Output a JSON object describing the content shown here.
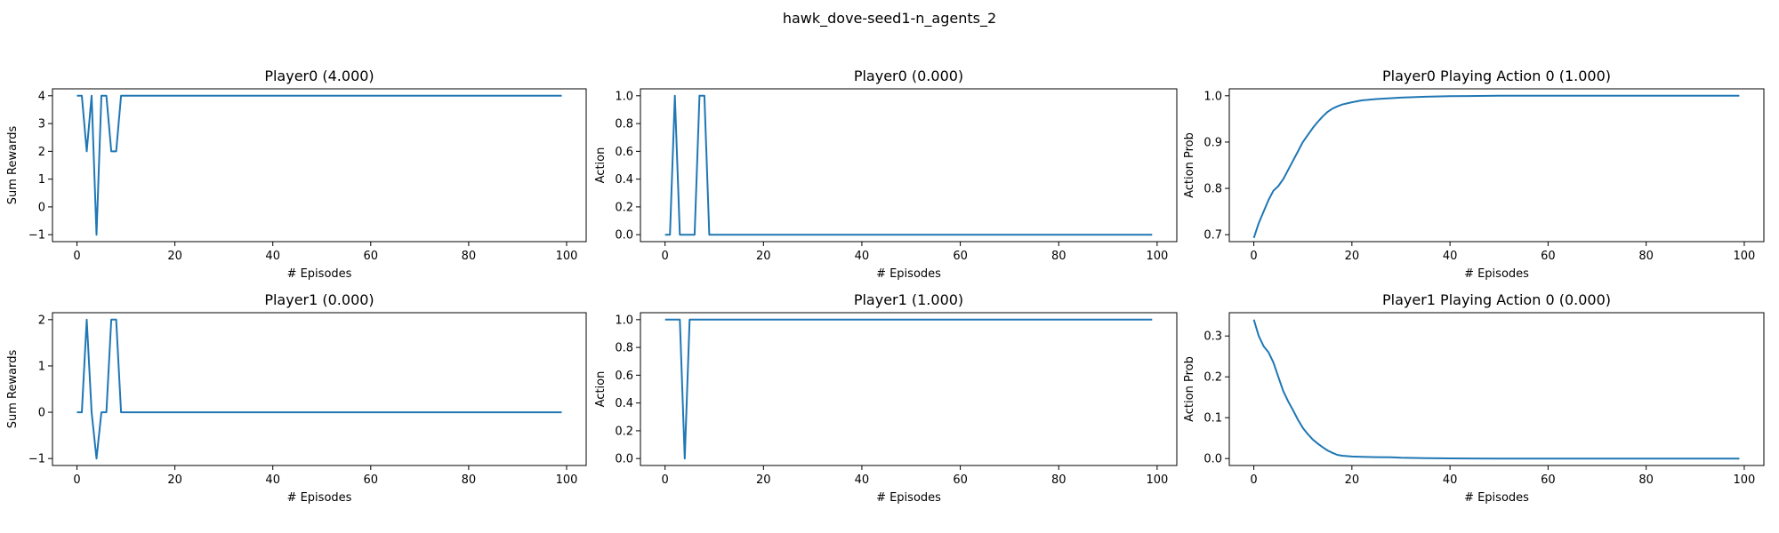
{
  "figure": {
    "suptitle": "hawk_dove-seed1-n_agents_2",
    "line_color": "#1f77b4"
  },
  "chart_data": [
    {
      "type": "line",
      "title": "Player0 (4.000)",
      "xlabel": "# Episodes",
      "ylabel": "Sum Rewards",
      "xlim": [
        -5,
        104
      ],
      "ylim": [
        -1.25,
        4.25
      ],
      "xticks": [
        0,
        20,
        40,
        60,
        80,
        100
      ],
      "yticks": [
        -1,
        0,
        1,
        2,
        3,
        4
      ],
      "grid": false,
      "series": [
        {
          "x": [
            0,
            1,
            2,
            3,
            4,
            5,
            6,
            7,
            8,
            9,
            99
          ],
          "y": [
            4,
            4,
            2,
            4,
            -1,
            4,
            4,
            2,
            2,
            4,
            4
          ]
        }
      ]
    },
    {
      "type": "line",
      "title": "Player0 (0.000)",
      "xlabel": "# Episodes",
      "ylabel": "Action",
      "xlim": [
        -5,
        104
      ],
      "ylim": [
        -0.05,
        1.05
      ],
      "xticks": [
        0,
        20,
        40,
        60,
        80,
        100
      ],
      "yticks": [
        0.0,
        0.2,
        0.4,
        0.6,
        0.8,
        1.0
      ],
      "ytick_labels": [
        "0.0",
        "0.2",
        "0.4",
        "0.6",
        "0.8",
        "1.0"
      ],
      "grid": false,
      "series": [
        {
          "x": [
            0,
            1,
            2,
            3,
            4,
            5,
            6,
            7,
            8,
            9,
            99
          ],
          "y": [
            0,
            0,
            1,
            0,
            0,
            0,
            0,
            1,
            1,
            0,
            0
          ]
        }
      ]
    },
    {
      "type": "line",
      "title": "Player0 Playing Action 0 (1.000)",
      "xlabel": "# Episodes",
      "ylabel": "Action Prob",
      "xlim": [
        -5,
        104
      ],
      "ylim": [
        0.685,
        1.015
      ],
      "xticks": [
        0,
        20,
        40,
        60,
        80,
        100
      ],
      "yticks": [
        0.7,
        0.8,
        0.9,
        1.0
      ],
      "ytick_labels": [
        "0.7",
        "0.8",
        "0.9",
        "1.0"
      ],
      "grid": false,
      "series": [
        {
          "x": [
            0,
            1,
            2,
            3,
            4,
            5,
            6,
            7,
            8,
            9,
            10,
            11,
            12,
            13,
            14,
            15,
            16,
            17,
            18,
            20,
            22,
            25,
            30,
            35,
            40,
            50,
            60,
            70,
            80,
            90,
            99
          ],
          "y": [
            0.693,
            0.725,
            0.75,
            0.775,
            0.795,
            0.805,
            0.82,
            0.84,
            0.86,
            0.88,
            0.9,
            0.915,
            0.93,
            0.943,
            0.955,
            0.965,
            0.972,
            0.977,
            0.981,
            0.986,
            0.99,
            0.993,
            0.996,
            0.998,
            0.999,
            1.0,
            1.0,
            1.0,
            1.0,
            1.0,
            1.0
          ]
        }
      ]
    },
    {
      "type": "line",
      "title": "Player1 (0.000)",
      "xlabel": "# Episodes",
      "ylabel": "Sum Rewards",
      "xlim": [
        -5,
        104
      ],
      "ylim": [
        -1.15,
        2.15
      ],
      "xticks": [
        0,
        20,
        40,
        60,
        80,
        100
      ],
      "yticks": [
        -1,
        0,
        1,
        2
      ],
      "grid": false,
      "series": [
        {
          "x": [
            0,
            1,
            2,
            3,
            4,
            5,
            6,
            7,
            8,
            9,
            99
          ],
          "y": [
            0,
            0,
            2,
            0,
            -1,
            0,
            0,
            2,
            2,
            0,
            0
          ]
        }
      ]
    },
    {
      "type": "line",
      "title": "Player1 (1.000)",
      "xlabel": "# Episodes",
      "ylabel": "Action",
      "xlim": [
        -5,
        104
      ],
      "ylim": [
        -0.05,
        1.05
      ],
      "xticks": [
        0,
        20,
        40,
        60,
        80,
        100
      ],
      "yticks": [
        0.0,
        0.2,
        0.4,
        0.6,
        0.8,
        1.0
      ],
      "ytick_labels": [
        "0.0",
        "0.2",
        "0.4",
        "0.6",
        "0.8",
        "1.0"
      ],
      "grid": false,
      "series": [
        {
          "x": [
            0,
            1,
            2,
            3,
            4,
            5,
            99
          ],
          "y": [
            1,
            1,
            1,
            1,
            0,
            1,
            1
          ]
        }
      ]
    },
    {
      "type": "line",
      "title": "Player1 Playing Action 0 (0.000)",
      "xlabel": "# Episodes",
      "ylabel": "Action Prob",
      "xlim": [
        -5,
        104
      ],
      "ylim": [
        -0.017,
        0.357
      ],
      "xticks": [
        0,
        20,
        40,
        60,
        80,
        100
      ],
      "yticks": [
        0.0,
        0.1,
        0.2,
        0.3
      ],
      "ytick_labels": [
        "0.0",
        "0.1",
        "0.2",
        "0.3"
      ],
      "grid": false,
      "series": [
        {
          "x": [
            0,
            1,
            2,
            3,
            4,
            5,
            6,
            7,
            8,
            9,
            10,
            11,
            12,
            13,
            14,
            15,
            16,
            17,
            18,
            20,
            22,
            25,
            28,
            30,
            35,
            40,
            50,
            60,
            70,
            80,
            90,
            99
          ],
          "y": [
            0.34,
            0.3,
            0.275,
            0.26,
            0.235,
            0.2,
            0.165,
            0.14,
            0.118,
            0.095,
            0.075,
            0.06,
            0.047,
            0.037,
            0.028,
            0.02,
            0.014,
            0.009,
            0.007,
            0.005,
            0.004,
            0.0035,
            0.003,
            0.002,
            0.001,
            0.0005,
            0.0,
            0.0,
            0.0,
            0.0,
            0.0,
            0.0
          ]
        }
      ]
    }
  ]
}
